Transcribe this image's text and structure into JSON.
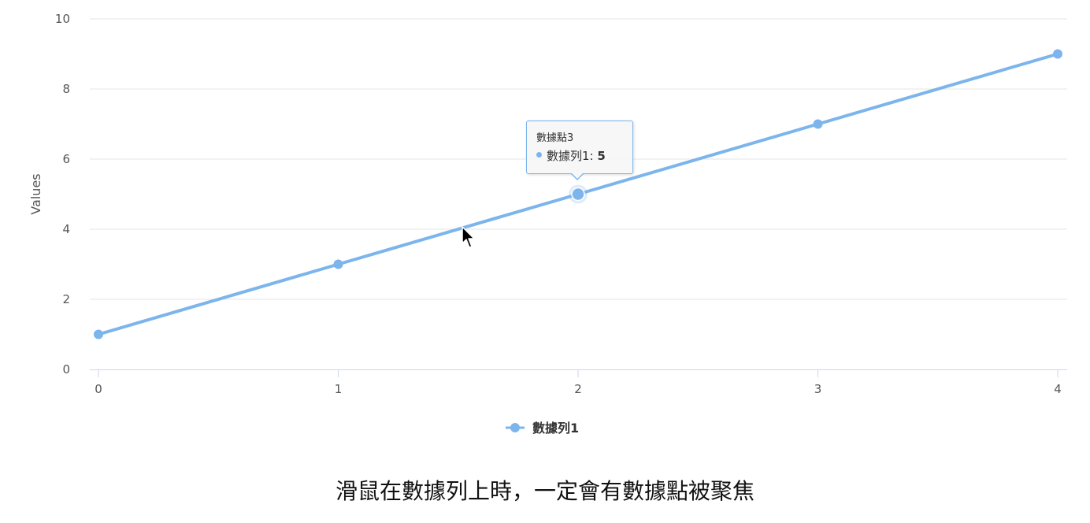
{
  "chart_data": {
    "type": "line",
    "ylabel": "Values",
    "xlim": [
      0,
      4
    ],
    "ylim": [
      0,
      10
    ],
    "x_ticks": [
      "0",
      "1",
      "2",
      "3",
      "4"
    ],
    "y_ticks": [
      "0",
      "2",
      "4",
      "6",
      "8",
      "10"
    ],
    "grid": "horizontal",
    "legend_position": "bottom-center",
    "series": [
      {
        "name": "數據列1",
        "color": "#7cb5ec",
        "x": [
          0,
          1,
          2,
          3,
          4
        ],
        "y": [
          1,
          3,
          5,
          7,
          9
        ]
      }
    ],
    "tooltip": {
      "point_index": 2,
      "header": "數據點3",
      "series_label": "數據列1:",
      "value": "5"
    }
  },
  "caption": "滑鼠在數據列上時，一定會有數據點被聚焦",
  "icons": {
    "cursor": "mouse-pointer-icon"
  }
}
